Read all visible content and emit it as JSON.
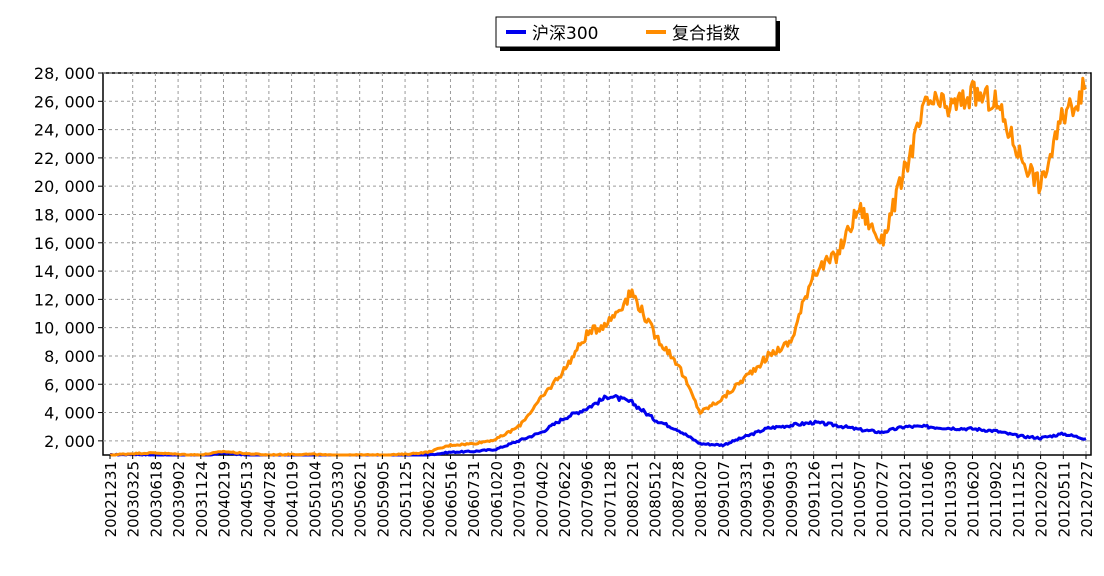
{
  "chart_data": {
    "type": "line",
    "title": "",
    "xlabel": "",
    "ylabel": "",
    "ylim": [
      1000,
      28000
    ],
    "grid": true,
    "legend_position": "top-center",
    "yticks": [
      2000,
      4000,
      6000,
      8000,
      10000,
      12000,
      14000,
      16000,
      18000,
      20000,
      22000,
      24000,
      26000,
      28000
    ],
    "ytick_labels": [
      "2, 000",
      "4, 000",
      "6, 000",
      "8, 000",
      "10, 000",
      "12, 000",
      "14, 000",
      "16, 000",
      "18, 000",
      "20, 000",
      "22, 000",
      "24, 000",
      "26, 000",
      "28, 000"
    ],
    "x": [
      "20021231",
      "20030325",
      "20030618",
      "20030902",
      "20031124",
      "20040219",
      "20040513",
      "20040728",
      "20041019",
      "20050104",
      "20050330",
      "20050621",
      "20050905",
      "20051125",
      "20060222",
      "20060516",
      "20060731",
      "20061020",
      "20070109",
      "20070402",
      "20070622",
      "20070906",
      "20071128",
      "20080221",
      "20080512",
      "20080728",
      "20081020",
      "20090107",
      "20090331",
      "20090619",
      "20090903",
      "20091126",
      "20100211",
      "20100507",
      "20100727",
      "20101021",
      "20110106",
      "20110330",
      "20110620",
      "20110902",
      "20111125",
      "20120220",
      "20120511",
      "20120727"
    ],
    "series": [
      {
        "name": "沪深300",
        "color": "#0000ee",
        "values": [
          1000,
          1050,
          1000,
          950,
          900,
          1150,
          1000,
          900,
          900,
          950,
          850,
          850,
          850,
          900,
          1000,
          1200,
          1250,
          1400,
          2000,
          2600,
          3600,
          4300,
          5200,
          4700,
          3500,
          2800,
          1800,
          1700,
          2300,
          2900,
          3100,
          3300,
          3100,
          2800,
          2600,
          3000,
          3000,
          2900,
          2850,
          2700,
          2350,
          2200,
          2500,
          2150
        ]
      },
      {
        "name": "复合指数",
        "color": "#ff8c00",
        "values": [
          1000,
          1100,
          1150,
          1050,
          1000,
          1250,
          1100,
          1000,
          1050,
          1050,
          950,
          1000,
          1000,
          1050,
          1200,
          1700,
          1800,
          2100,
          3000,
          5000,
          7000,
          9500,
          10500,
          12500,
          9500,
          7500,
          4000,
          5000,
          6500,
          8000,
          9000,
          14000,
          15000,
          18500,
          16000,
          21000,
          26000,
          25500,
          26500,
          26000,
          22500,
          20000,
          25000,
          27000
        ]
      }
    ]
  }
}
